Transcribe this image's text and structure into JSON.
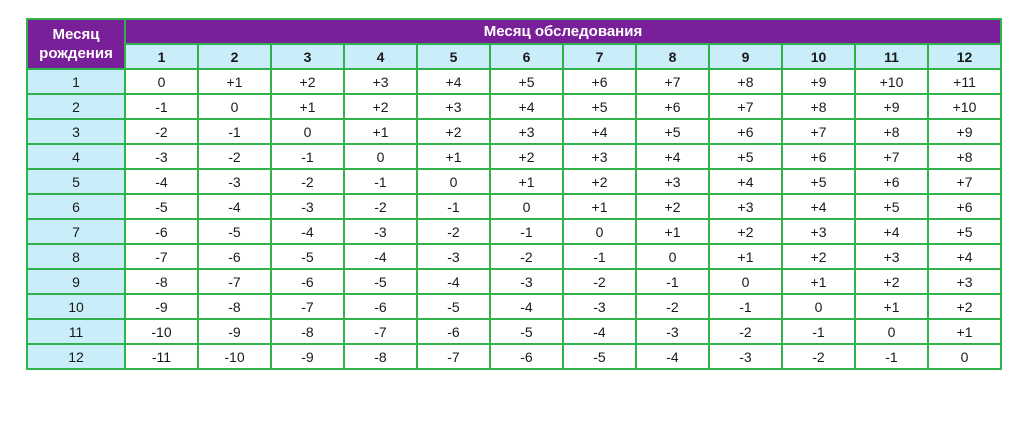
{
  "table": {
    "corner_label": "Месяц рождения",
    "group_header": "Месяц обследования",
    "columns": [
      "1",
      "2",
      "3",
      "4",
      "5",
      "6",
      "7",
      "8",
      "9",
      "10",
      "11",
      "12"
    ],
    "rows": [
      {
        "label": "1",
        "values": [
          "0",
          "+1",
          "+2",
          "+3",
          "+4",
          "+5",
          "+6",
          "+7",
          "+8",
          "+9",
          "+10",
          "+11"
        ]
      },
      {
        "label": "2",
        "values": [
          "-1",
          "0",
          "+1",
          "+2",
          "+3",
          "+4",
          "+5",
          "+6",
          "+7",
          "+8",
          "+9",
          "+10"
        ]
      },
      {
        "label": "3",
        "values": [
          "-2",
          "-1",
          "0",
          "+1",
          "+2",
          "+3",
          "+4",
          "+5",
          "+6",
          "+7",
          "+8",
          "+9"
        ]
      },
      {
        "label": "4",
        "values": [
          "-3",
          "-2",
          "-1",
          "0",
          "+1",
          "+2",
          "+3",
          "+4",
          "+5",
          "+6",
          "+7",
          "+8"
        ]
      },
      {
        "label": "5",
        "values": [
          "-4",
          "-3",
          "-2",
          "-1",
          "0",
          "+1",
          "+2",
          "+3",
          "+4",
          "+5",
          "+6",
          "+7"
        ]
      },
      {
        "label": "6",
        "values": [
          "-5",
          "-4",
          "-3",
          "-2",
          "-1",
          "0",
          "+1",
          "+2",
          "+3",
          "+4",
          "+5",
          "+6"
        ]
      },
      {
        "label": "7",
        "values": [
          "-6",
          "-5",
          "-4",
          "-3",
          "-2",
          "-1",
          "0",
          "+1",
          "+2",
          "+3",
          "+4",
          "+5"
        ]
      },
      {
        "label": "8",
        "values": [
          "-7",
          "-6",
          "-5",
          "-4",
          "-3",
          "-2",
          "-1",
          "0",
          "+1",
          "+2",
          "+3",
          "+4"
        ]
      },
      {
        "label": "9",
        "values": [
          "-8",
          "-7",
          "-6",
          "-5",
          "-4",
          "-3",
          "-2",
          "-1",
          "0",
          "+1",
          "+2",
          "+3"
        ]
      },
      {
        "label": "10",
        "values": [
          "-9",
          "-8",
          "-7",
          "-6",
          "-5",
          "-4",
          "-3",
          "-2",
          "-1",
          "0",
          "+1",
          "+2"
        ]
      },
      {
        "label": "11",
        "values": [
          "-10",
          "-9",
          "-8",
          "-7",
          "-6",
          "-5",
          "-4",
          "-3",
          "-2",
          "-1",
          "0",
          "+1"
        ]
      },
      {
        "label": "12",
        "values": [
          "-11",
          "-10",
          "-9",
          "-8",
          "-7",
          "-6",
          "-5",
          "-4",
          "-3",
          "-2",
          "-1",
          "0"
        ]
      }
    ],
    "colors": {
      "header_purple": "#7a1f9a",
      "header_light_blue": "#c9eef9",
      "border_green": "#2fb24a"
    }
  }
}
